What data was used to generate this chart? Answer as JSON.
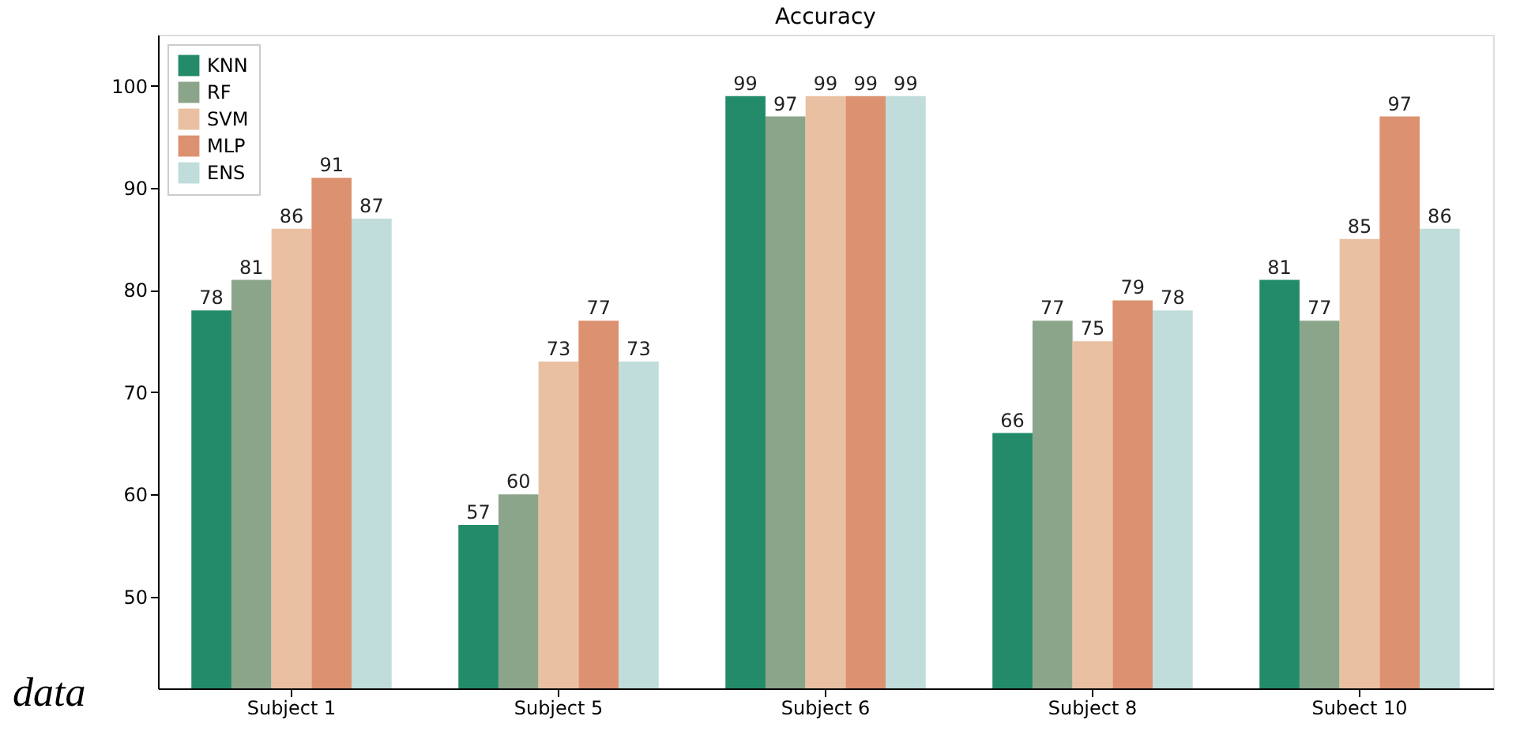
{
  "chart_data": {
    "type": "bar",
    "title": "Accuracy",
    "categories": [
      "Subject 1",
      "Subject 5",
      "Subject 6",
      "Subject 8",
      "Subect 10"
    ],
    "series": [
      {
        "name": "KNN",
        "color": "#238b69",
        "values": [
          78,
          57,
          99,
          66,
          81
        ]
      },
      {
        "name": "RF",
        "color": "#8ba58a",
        "values": [
          81,
          60,
          97,
          77,
          77
        ]
      },
      {
        "name": "SVM",
        "color": "#eac0a2",
        "values": [
          86,
          73,
          99,
          75,
          85
        ]
      },
      {
        "name": "MLP",
        "color": "#dc9270",
        "values": [
          91,
          77,
          99,
          79,
          97
        ]
      },
      {
        "name": "ENS",
        "color": "#c0dcdb",
        "values": [
          87,
          73,
          99,
          78,
          86
        ]
      }
    ],
    "ylim": [
      41,
      105
    ],
    "yticks": [
      50,
      60,
      70,
      80,
      90,
      100
    ],
    "grid": false,
    "legend": "top left",
    "data_labels": true,
    "annotations": [
      "data"
    ]
  }
}
